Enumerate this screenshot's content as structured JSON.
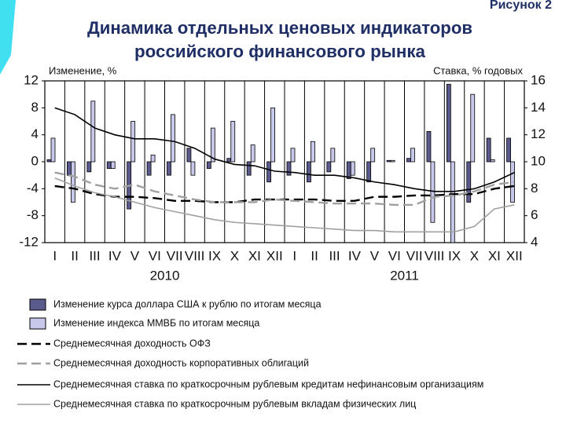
{
  "chart_data": {
    "type": "combo",
    "figure_label": "Рисунок 2",
    "title": [
      "Динамика отдельных ценовых индикаторов",
      "российского финансового рынка"
    ],
    "ylabel": "Изменение, %",
    "y2label": "Ставка, % годовых",
    "categories": [
      "I",
      "II",
      "III",
      "IV",
      "V",
      "VI",
      "VII",
      "VIII",
      "IX",
      "X",
      "XI",
      "XII",
      "I",
      "II",
      "III",
      "IV",
      "V",
      "VI",
      "VII",
      "VIII",
      "IX",
      "X",
      "XI",
      "XII"
    ],
    "year_labels": [
      "2010",
      "2011"
    ],
    "ylim": [
      -12,
      12
    ],
    "yticks": [
      -12,
      -8,
      -4,
      0,
      4,
      8,
      12
    ],
    "y2lim": [
      4,
      16
    ],
    "y2ticks": [
      4,
      6,
      8,
      10,
      12,
      14,
      16
    ],
    "grid": "x",
    "series": [
      {
        "name": "Изменение курса доллара США к рублю по итогам месяца",
        "kind": "bar",
        "color": "#5a5a8c",
        "axis": "y",
        "values": [
          0.3,
          -2,
          -1.5,
          -1,
          -7,
          -2,
          -2,
          2,
          -1,
          0.5,
          -2,
          -3,
          -2,
          -3,
          -1.5,
          -2.5,
          -3,
          0.2,
          0.5,
          4.5,
          11.5,
          -6,
          3.5,
          3.5
        ]
      },
      {
        "name": "Изменение индекса ММВБ по итогам месяца",
        "kind": "bar",
        "color": "#c8c8ea",
        "axis": "y",
        "values": [
          3.5,
          -6,
          9,
          -1,
          6,
          1,
          7,
          -2,
          5,
          6,
          2.5,
          8,
          2,
          3,
          2,
          -2,
          2,
          0.2,
          2,
          -9,
          -12,
          10,
          0.3,
          -6
        ]
      },
      {
        "name": "Среднемесячная доходность ОФЗ",
        "kind": "line",
        "color": "#000000",
        "dash": true,
        "axis": "y2",
        "values": [
          8.2,
          8.0,
          7.6,
          7.4,
          7.4,
          7.3,
          7.1,
          7.1,
          7.0,
          7.0,
          7.2,
          7.2,
          7.2,
          7.2,
          7.1,
          7.1,
          7.4,
          7.4,
          7.5,
          7.5,
          7.6,
          7.6,
          8.0,
          8.2
        ]
      },
      {
        "name": "Среднемесячная доходность корпоративных облигаций",
        "kind": "line",
        "color": "#a0a0a0",
        "dash": true,
        "axis": "y2",
        "values": [
          9.2,
          8.9,
          8.3,
          8.0,
          8.3,
          7.8,
          7.5,
          7.2,
          7.0,
          7.0,
          7.0,
          7.2,
          7.1,
          7.0,
          6.9,
          6.9,
          6.9,
          6.8,
          6.8,
          7.4,
          7.5,
          7.8,
          8.3,
          8.5
        ]
      },
      {
        "name": "Среднемесячная ставка по краткосрочным рублевым кредитам нефинансовым организациям",
        "kind": "line",
        "color": "#000000",
        "dash": false,
        "axis": "y2",
        "values": [
          14,
          13.5,
          12.5,
          12,
          11.7,
          11.7,
          11.5,
          11,
          10.2,
          9.8,
          9.7,
          9.3,
          9.2,
          9.0,
          9.0,
          8.8,
          8.5,
          8.3,
          8.0,
          7.8,
          7.8,
          8.0,
          8.5,
          9.2
        ]
      },
      {
        "name": "Среднемесячная ставка по краткосрочным рублевым вкладам физических лиц",
        "kind": "line",
        "color": "#a0a0a0",
        "dash": false,
        "axis": "y2",
        "values": [
          8.8,
          8.2,
          7.7,
          7.4,
          7.0,
          6.6,
          6.3,
          6.0,
          5.7,
          5.5,
          5.4,
          5.3,
          5.2,
          5.1,
          5.0,
          4.9,
          4.9,
          4.8,
          4.8,
          4.8,
          4.8,
          5.2,
          6.5,
          6.8
        ]
      }
    ]
  }
}
